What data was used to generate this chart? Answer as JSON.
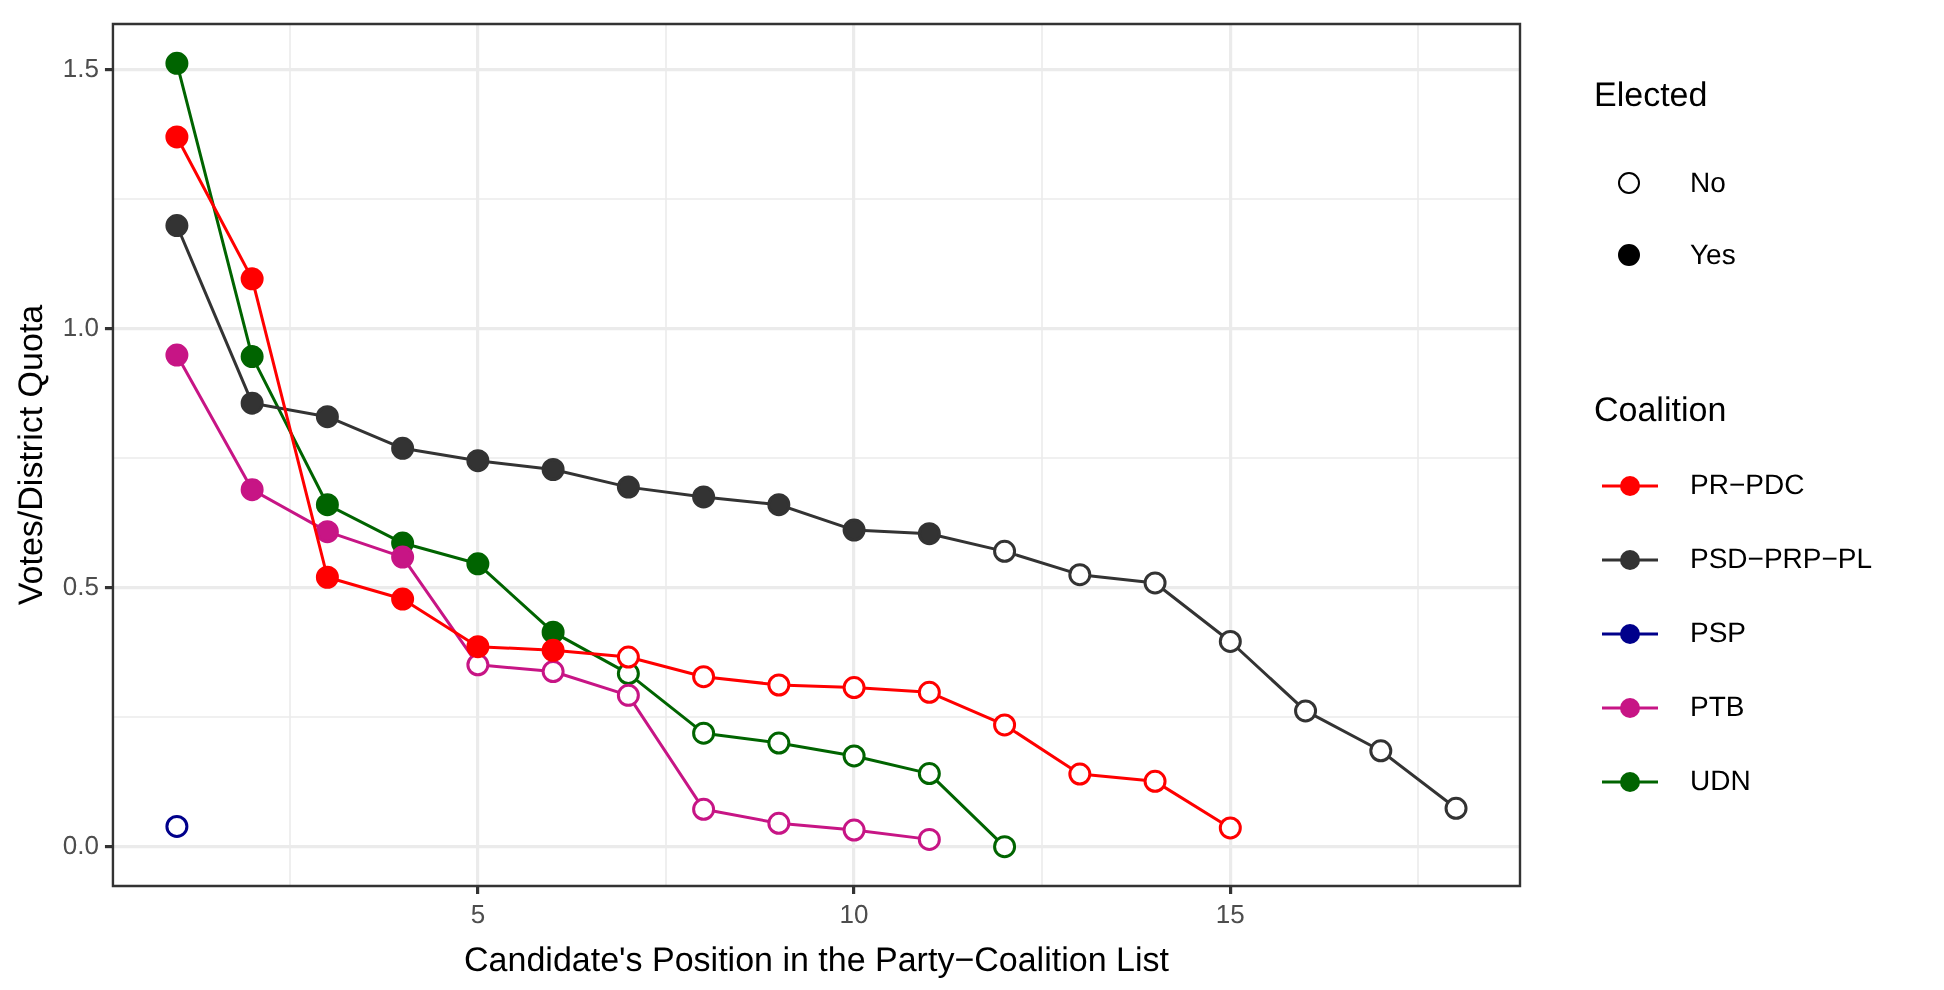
{
  "chart_data": {
    "type": "line",
    "xlabel": "Candidate's Position in the Party−Coalition List",
    "ylabel": "Votes/District Quota",
    "legend": "right",
    "legend_title": "Coalition",
    "marker": "circle",
    "line_style": "solid",
    "grid": true,
    "annotations": [
      "Elected",
      "No",
      "Yes"
    ],
    "xlim": [
      0.15,
      18.85
    ],
    "xticks": [
      {
        "value": 2.5,
        "label": null
      },
      5,
      {
        "value": 7.5,
        "label": null
      },
      10,
      {
        "value": 12.5,
        "label": null
      },
      15,
      {
        "value": 17.5,
        "label": null
      }
    ],
    "ylim": [
      -0.076,
      1.588
    ],
    "yticks": [
      {
        "value": 0,
        "label": "0.0"
      },
      {
        "value": 0.25,
        "label": null
      },
      {
        "value": 0.5,
        "label": "0.5"
      },
      {
        "value": 0.75,
        "label": null
      },
      {
        "value": 1,
        "label": "1.0"
      },
      {
        "value": 1.25,
        "label": null
      },
      {
        "value": 1.5,
        "label": "1.5"
      }
    ],
    "series": [
      {
        "name": "PR−PDC",
        "color": "#ff0000",
        "x": [
          1,
          2,
          3,
          4,
          5,
          6,
          7,
          8,
          9,
          10,
          11,
          12,
          13,
          14,
          15
        ],
        "values": [
          1.37,
          1.096,
          0.52,
          0.478,
          0.386,
          0.379,
          0.366,
          0.328,
          0.312,
          0.307,
          0.298,
          0.235,
          0.14,
          0.126,
          0.036
        ],
        "colors": [
          "#ff0000",
          "#ff0000",
          "#ff0000",
          "#ff0000",
          "#ff0000",
          "#ff0000",
          "#ffffff",
          "#ffffff",
          "#ffffff",
          "#ffffff",
          "#ffffff",
          "#ffffff",
          "#ffffff",
          "#ffffff",
          "#ffffff"
        ]
      },
      {
        "name": "PSD−PRP−PL",
        "color": "#333333",
        "x": [
          1,
          2,
          3,
          4,
          5,
          6,
          7,
          8,
          9,
          10,
          11,
          12,
          13,
          14,
          15,
          16,
          17,
          18
        ],
        "values": [
          1.199,
          0.856,
          0.83,
          0.769,
          0.745,
          0.728,
          0.694,
          0.675,
          0.66,
          0.611,
          0.604,
          0.57,
          0.525,
          0.509,
          0.396,
          0.262,
          0.185,
          0.074
        ],
        "colors": [
          "#333333",
          "#333333",
          "#333333",
          "#333333",
          "#333333",
          "#333333",
          "#333333",
          "#333333",
          "#333333",
          "#333333",
          "#333333",
          "#ffffff",
          "#ffffff",
          "#ffffff",
          "#ffffff",
          "#ffffff",
          "#ffffff",
          "#ffffff"
        ]
      },
      {
        "name": "PSP",
        "color": "#00008b",
        "x": [
          1
        ],
        "values": [
          0.039
        ],
        "colors": [
          "#ffffff"
        ]
      },
      {
        "name": "PTB",
        "color": "#c71585",
        "x": [
          1,
          2,
          3,
          4,
          5,
          6,
          7,
          8,
          9,
          10,
          11
        ],
        "values": [
          0.949,
          0.689,
          0.608,
          0.559,
          0.351,
          0.338,
          0.292,
          0.072,
          0.045,
          0.032,
          0.014
        ],
        "colors": [
          "#c71585",
          "#c71585",
          "#c71585",
          "#c71585",
          "#ffffff",
          "#ffffff",
          "#ffffff",
          "#ffffff",
          "#ffffff",
          "#ffffff",
          "#ffffff"
        ]
      },
      {
        "name": "UDN",
        "color": "#006400",
        "x": [
          1,
          2,
          3,
          4,
          5,
          6,
          7,
          8,
          9,
          10,
          11,
          12
        ],
        "values": [
          1.512,
          0.946,
          0.66,
          0.586,
          0.546,
          0.414,
          0.334,
          0.219,
          0.2,
          0.175,
          0.141,
          0.0
        ],
        "colors": [
          "#006400",
          "#006400",
          "#006400",
          "#006400",
          "#006400",
          "#006400",
          "#ffffff",
          "#ffffff",
          "#ffffff",
          "#ffffff",
          "#ffffff",
          "#ffffff"
        ]
      }
    ]
  }
}
